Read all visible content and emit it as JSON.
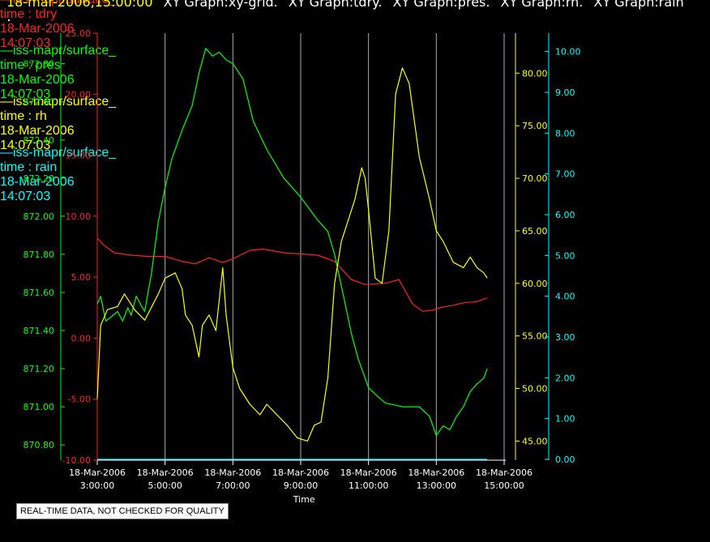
{
  "header": {
    "timestamp": "18-mar-2006,15:00:00",
    "titles": [
      "XY Graph:xy-grid.",
      "XY Graph:tdry.",
      "XY Graph:pres.",
      "XY Graph:rh.",
      "XY Graph:rain"
    ]
  },
  "disclaimer": "REAL-TIME DATA, NOT CHECKED FOR QUALITY",
  "colors": {
    "tdry": "#ff2020",
    "pres": "#00ff00",
    "rh": "#ffff00",
    "rain": "#00ffff",
    "grid": "#aaaaaa",
    "axis": "#ffffff"
  },
  "legend": [
    {
      "key": "tdry",
      "name": "iss-mapr/surface_",
      "var": "time : tdry",
      "date": "18-Mar-2006",
      "time": "14:07:03"
    },
    {
      "key": "pres",
      "name": "iss-mapr/surface_",
      "var": "time : pres",
      "date": "18-Mar-2006",
      "time": "14:07:03"
    },
    {
      "key": "rh",
      "name": "iss-mapr/surface_",
      "var": "time : rh",
      "date": "18-Mar-2006",
      "time": "14:07:03"
    },
    {
      "key": "rain",
      "name": "iss-mapr/surface_",
      "var": "time : rain",
      "date": "18-Mar-2006",
      "time": "14:07:03"
    }
  ],
  "chart_data": {
    "type": "line",
    "xlabel": "Time",
    "xlim": [
      3,
      15
    ],
    "xticks": [
      {
        "v": 3,
        "d": "18-Mar-2006",
        "t": "3:00:00"
      },
      {
        "v": 5,
        "d": "18-Mar-2006",
        "t": "5:00:00"
      },
      {
        "v": 7,
        "d": "18-Mar-2006",
        "t": "7:00:00"
      },
      {
        "v": 9,
        "d": "18-Mar-2006",
        "t": "9:00:00"
      },
      {
        "v": 11,
        "d": "18-Mar-2006",
        "t": "11:00:00"
      },
      {
        "v": 13,
        "d": "18-Mar-2006",
        "t": "13:00:00"
      },
      {
        "v": 15,
        "d": "18-Mar-2006",
        "t": "15:00:00"
      }
    ],
    "grid": true,
    "axes": {
      "pres": {
        "side": "left-outer",
        "ylim": [
          870.72,
          872.96
        ],
        "ticks": [
          "870.80",
          "871.00",
          "871.20",
          "871.40",
          "871.60",
          "871.80",
          "872.00",
          "872.20",
          "872.40",
          "872.60",
          "872.80"
        ]
      },
      "tdry": {
        "side": "left-inner",
        "ylim": [
          -10,
          25
        ],
        "ticks": [
          "-10.00",
          "-5.00",
          "0.00",
          "5.00",
          "10.00",
          "15.00",
          "20.00",
          "25.00"
        ]
      },
      "rh": {
        "side": "right-inner",
        "ylim": [
          43.18,
          83.8
        ],
        "ticks": [
          "45.00",
          "50.00",
          "55.00",
          "60.00",
          "65.00",
          "70.00",
          "75.00",
          "80.00"
        ]
      },
      "rain": {
        "side": "right-outer",
        "ylim": [
          -0.02,
          10.45
        ],
        "ticks": [
          "0.00",
          "1.00",
          "2.00",
          "3.00",
          "4.00",
          "5.00",
          "6.00",
          "7.00",
          "8.00",
          "9.00",
          "10.00"
        ]
      }
    },
    "series": [
      {
        "name": "tdry",
        "x": [
          3.0,
          3.2,
          3.5,
          4.0,
          4.5,
          5.0,
          5.5,
          5.9,
          6.3,
          6.7,
          7.0,
          7.5,
          7.9,
          8.5,
          9.0,
          9.5,
          10.0,
          10.5,
          10.9,
          11.5,
          11.9,
          12.3,
          12.6,
          12.9,
          13.1,
          13.5,
          13.8,
          14.2,
          14.5
        ],
        "values": [
          8.2,
          7.6,
          7.0,
          6.8,
          6.7,
          6.7,
          6.3,
          6.1,
          6.6,
          6.2,
          6.5,
          7.2,
          7.3,
          7.0,
          6.9,
          6.8,
          6.3,
          4.8,
          4.4,
          4.5,
          4.8,
          2.8,
          2.2,
          2.3,
          2.5,
          2.7,
          2.9,
          3.0,
          3.3
        ]
      },
      {
        "name": "pres",
        "x": [
          3.0,
          3.1,
          3.25,
          3.4,
          3.6,
          3.75,
          3.9,
          4.0,
          4.15,
          4.3,
          4.4,
          4.6,
          4.8,
          5.0,
          5.2,
          5.5,
          5.8,
          6.0,
          6.2,
          6.4,
          6.6,
          6.8,
          7.0,
          7.3,
          7.6,
          8.0,
          8.5,
          9.0,
          9.5,
          9.8,
          10.0,
          10.3,
          10.5,
          10.7,
          11.0,
          11.3,
          11.5,
          12.0,
          12.5,
          12.8,
          13.0,
          13.2,
          13.4,
          13.6,
          13.8,
          14.0,
          14.2,
          14.4,
          14.5
        ],
        "values": [
          871.54,
          871.58,
          871.45,
          871.47,
          871.5,
          871.45,
          871.52,
          871.48,
          871.58,
          871.53,
          871.5,
          871.7,
          871.97,
          872.15,
          872.3,
          872.45,
          872.58,
          872.75,
          872.88,
          872.84,
          872.86,
          872.82,
          872.8,
          872.72,
          872.5,
          872.35,
          872.2,
          872.1,
          871.98,
          871.92,
          871.8,
          871.55,
          871.38,
          871.25,
          871.1,
          871.05,
          871.02,
          871.0,
          871.0,
          870.95,
          870.85,
          870.9,
          870.88,
          870.95,
          871.0,
          871.08,
          871.12,
          871.15,
          871.2
        ]
      },
      {
        "name": "rh",
        "x": [
          3.0,
          3.1,
          3.3,
          3.6,
          3.8,
          4.1,
          4.4,
          4.8,
          5.0,
          5.3,
          5.5,
          5.6,
          5.8,
          6.0,
          6.1,
          6.3,
          6.5,
          6.7,
          6.8,
          7.0,
          7.2,
          7.5,
          7.8,
          8.0,
          8.3,
          8.6,
          8.9,
          9.2,
          9.4,
          9.6,
          9.8,
          10.0,
          10.2,
          10.4,
          10.6,
          10.8,
          10.9,
          11.0,
          11.2,
          11.4,
          11.6,
          11.8,
          12.0,
          12.2,
          12.5,
          12.8,
          13.0,
          13.2,
          13.5,
          13.8,
          14.0,
          14.2,
          14.4,
          14.5
        ],
        "values": [
          49.0,
          56.0,
          57.5,
          57.8,
          59.0,
          57.5,
          56.5,
          59.0,
          60.5,
          61.0,
          59.5,
          57.0,
          56.0,
          53.0,
          56.0,
          57.0,
          55.5,
          61.5,
          57.0,
          52.0,
          50.0,
          48.5,
          47.5,
          48.5,
          47.5,
          46.5,
          45.3,
          45.0,
          46.5,
          46.8,
          51.0,
          60.0,
          64.0,
          66.0,
          68.0,
          71.0,
          70.0,
          67.0,
          60.5,
          60.0,
          65.0,
          78.0,
          80.5,
          79.0,
          72.0,
          68.0,
          65.0,
          64.0,
          62.0,
          61.5,
          62.5,
          61.5,
          61.0,
          60.5
        ]
      },
      {
        "name": "rain",
        "x": [
          3.0,
          14.5
        ],
        "values": [
          0.0,
          0.0
        ]
      }
    ]
  }
}
